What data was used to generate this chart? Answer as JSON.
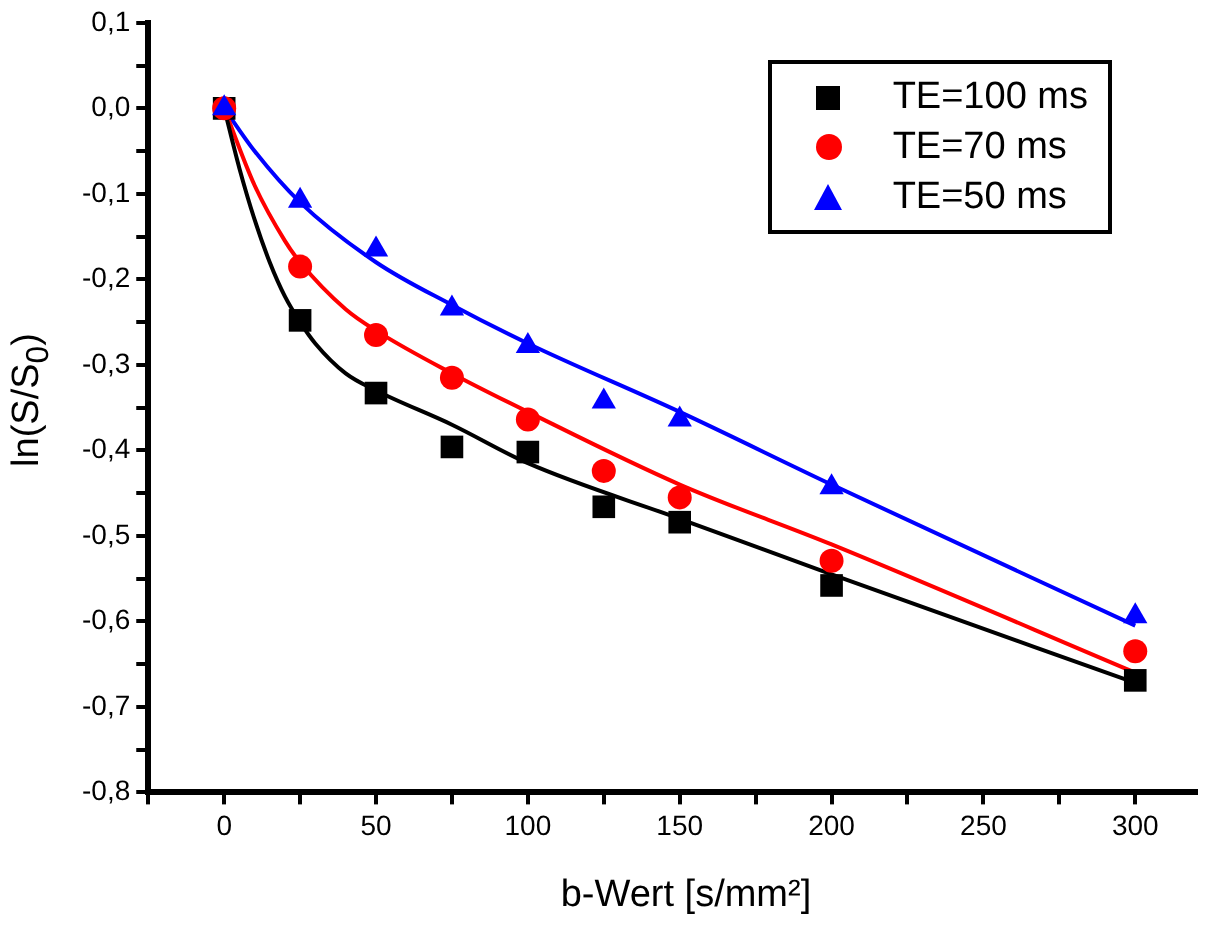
{
  "chart_data": {
    "type": "scatter",
    "xlabel": "b-Wert [s/mm²]",
    "ylabel": "ln(S/S$_{0}$)",
    "legend": "top right",
    "grid": false,
    "xlim": [
      -25,
      320
    ],
    "xticks": [
      {
        "value": -25,
        "label": null
      },
      0,
      {
        "value": 25,
        "label": null
      },
      50,
      {
        "value": 75,
        "label": null
      },
      100,
      {
        "value": 125,
        "label": null
      },
      150,
      {
        "value": 175,
        "label": null
      },
      200,
      {
        "value": 225,
        "label": null
      },
      250,
      {
        "value": 275,
        "label": null
      },
      300
    ],
    "ylim": [
      -0.8,
      0.1
    ],
    "yticks": [
      {
        "value": -0.8,
        "label": "-0,8"
      },
      {
        "value": -0.75,
        "label": null
      },
      {
        "value": -0.7,
        "label": "-0,7"
      },
      {
        "value": -0.65,
        "label": null
      },
      {
        "value": -0.6,
        "label": "-0,6"
      },
      {
        "value": -0.55,
        "label": null
      },
      {
        "value": -0.5,
        "label": "-0,5"
      },
      {
        "value": -0.45,
        "label": null
      },
      {
        "value": -0.4,
        "label": "-0,4"
      },
      {
        "value": -0.35,
        "label": null
      },
      {
        "value": -0.3,
        "label": "-0,3"
      },
      {
        "value": -0.25,
        "label": null
      },
      {
        "value": -0.2,
        "label": "-0,2"
      },
      {
        "value": -0.15,
        "label": null
      },
      {
        "value": -0.1,
        "label": "-0,1"
      },
      {
        "value": -0.05,
        "label": null
      },
      {
        "value": 0,
        "label": "0,0"
      },
      {
        "value": 0.05,
        "label": null
      },
      {
        "value": 0.1,
        "label": "0,1"
      }
    ],
    "x": [
      0,
      25,
      50,
      75,
      100,
      125,
      150,
      200,
      300
    ],
    "series": [
      {
        "name": "TE=100 ms",
        "color": "#000000",
        "marker": "square",
        "values": [
          0,
          -0.248,
          -0.333,
          -0.396,
          -0.402,
          -0.466,
          -0.484,
          -0.558,
          -0.669
        ]
      },
      {
        "name": "TE=70 ms",
        "color": "#ff0000",
        "marker": "circle",
        "values": [
          0,
          -0.185,
          -0.265,
          -0.315,
          -0.364,
          -0.424,
          -0.455,
          -0.529,
          -0.635
        ]
      },
      {
        "name": "TE=50 ms",
        "color": "#0000ff",
        "marker": "triangle",
        "values": [
          0,
          -0.108,
          -0.165,
          -0.234,
          -0.278,
          -0.343,
          -0.364,
          -0.443,
          -0.594
        ]
      },
      {
        "type": "line",
        "color": "#000000",
        "marker": "none",
        "line_style": "solid",
        "x": [
          0,
          5,
          10,
          15,
          20,
          25,
          30,
          40,
          50,
          75,
          100,
          150,
          200,
          300
        ],
        "values": [
          0,
          -0.07,
          -0.13,
          -0.18,
          -0.22,
          -0.25,
          -0.275,
          -0.31,
          -0.33,
          -0.37,
          -0.415,
          -0.48,
          -0.545,
          -0.672
        ]
      },
      {
        "type": "line",
        "color": "#ff0000",
        "marker": "none",
        "line_style": "solid",
        "x": [
          0,
          10,
          20,
          25,
          40,
          50,
          75,
          100,
          150,
          200,
          300
        ],
        "values": [
          0,
          -0.09,
          -0.155,
          -0.18,
          -0.235,
          -0.26,
          -0.31,
          -0.355,
          -0.44,
          -0.51,
          -0.66
        ]
      },
      {
        "type": "line",
        "color": "#0000ff",
        "marker": "none",
        "line_style": "solid",
        "x": [
          0,
          10,
          25,
          50,
          75,
          100,
          150,
          200,
          300
        ],
        "values": [
          0,
          -0.05,
          -0.11,
          -0.18,
          -0.23,
          -0.275,
          -0.355,
          -0.44,
          -0.605
        ]
      }
    ]
  }
}
